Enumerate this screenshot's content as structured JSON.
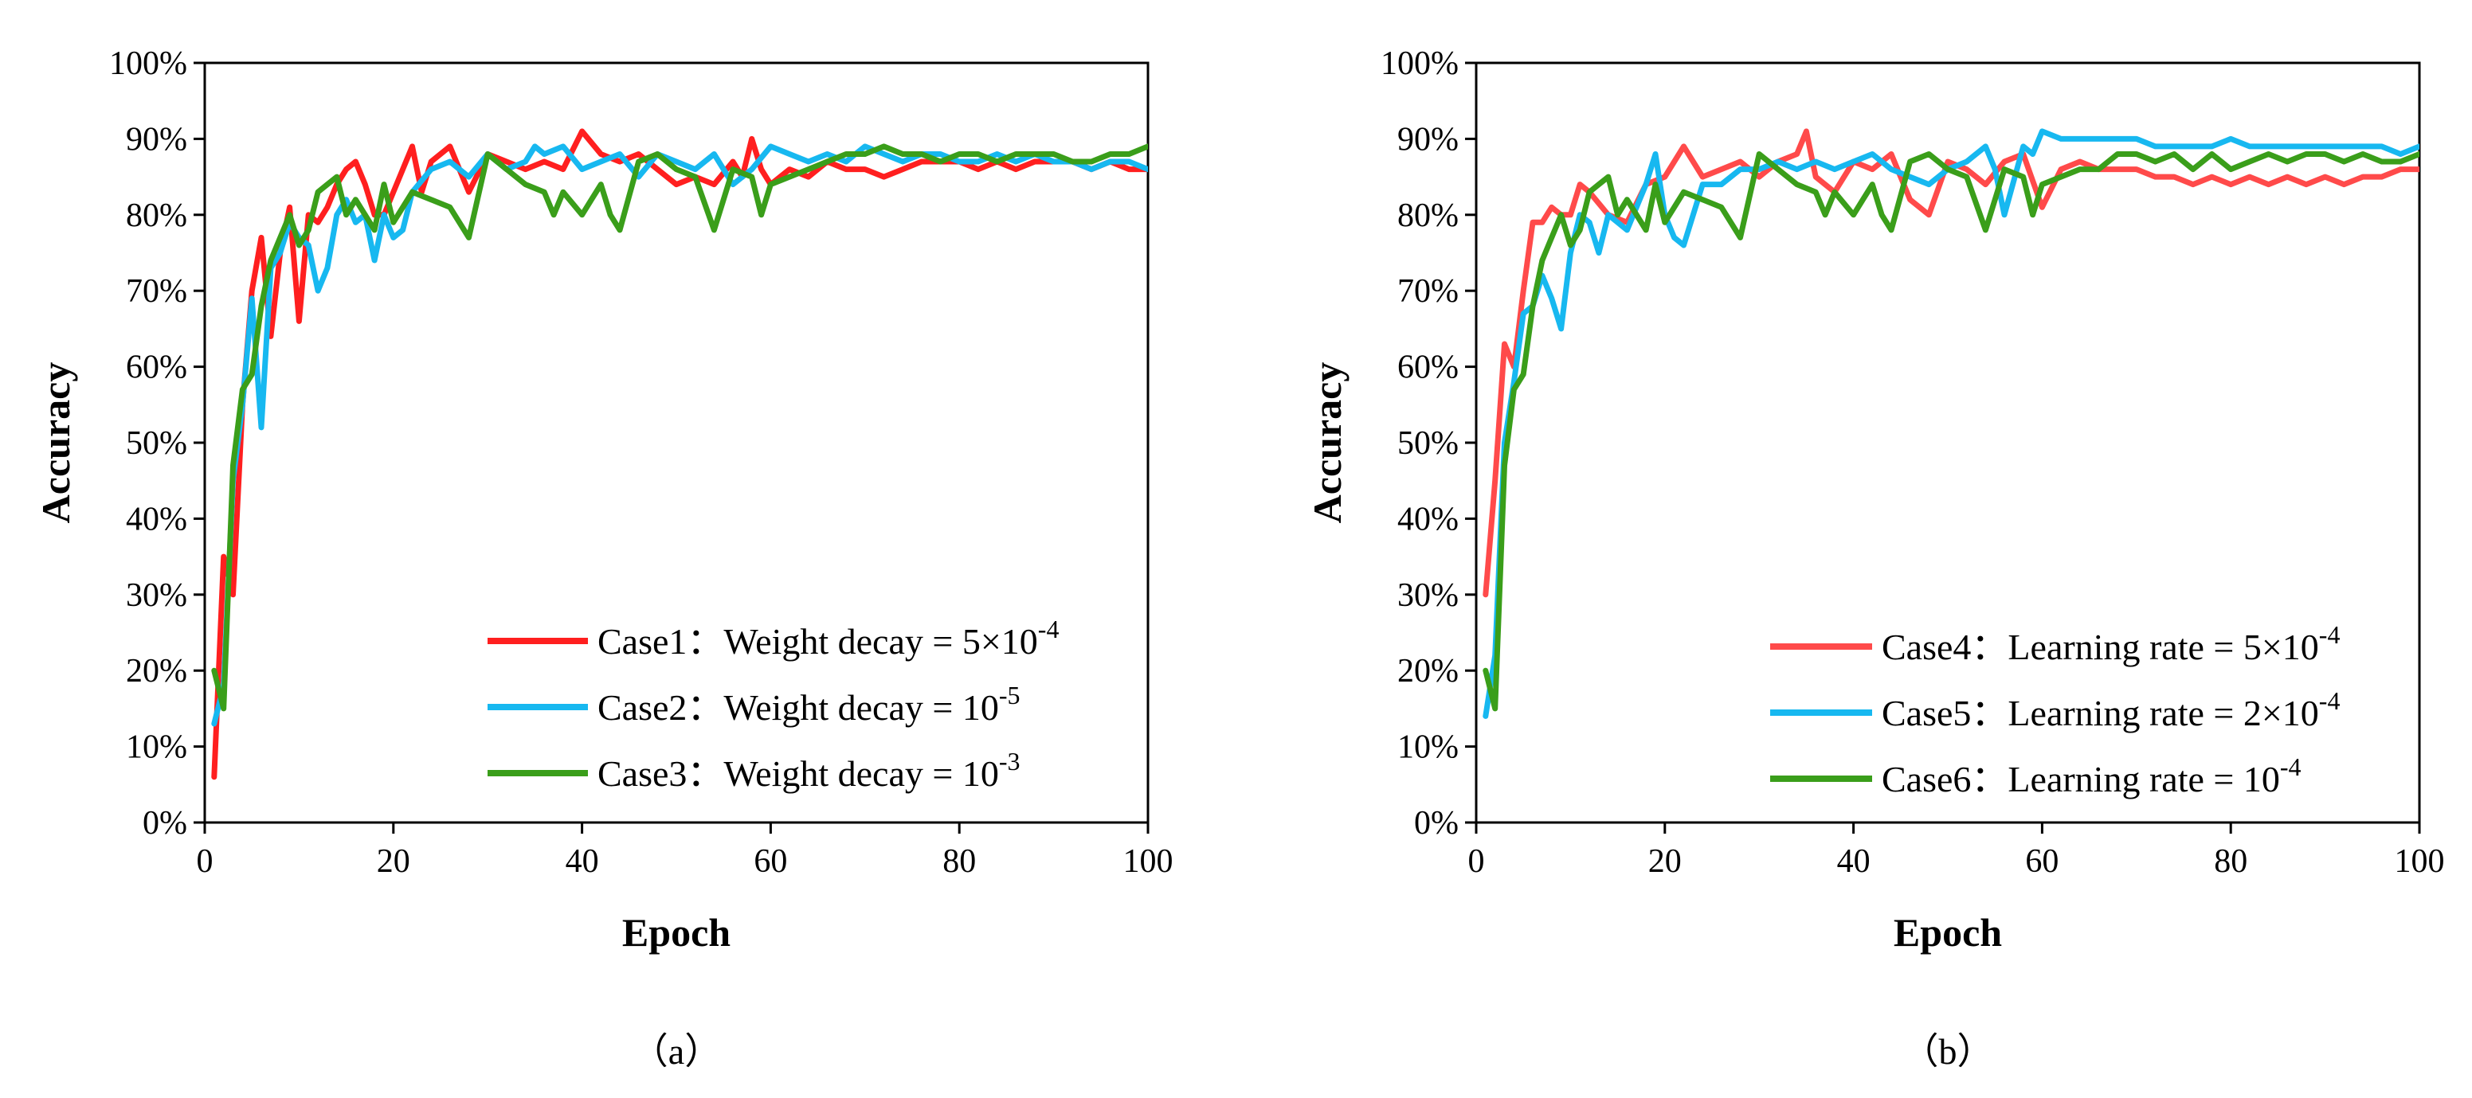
{
  "chart_data": [
    {
      "type": "line",
      "caption": "（a）",
      "xlabel": "Epoch",
      "ylabel": "Accuracy",
      "xlim": [
        0,
        100
      ],
      "ylim": [
        0,
        100
      ],
      "x_ticks": [
        "0",
        "20",
        "40",
        "60",
        "80",
        "100"
      ],
      "y_ticks": [
        "0%",
        "10%",
        "20%",
        "30%",
        "40%",
        "50%",
        "60%",
        "70%",
        "80%",
        "90%",
        "100%"
      ],
      "legend_position": "bottom-right",
      "series": [
        {
          "name": "Case1",
          "label": "Weight decay = 5×10",
          "exponent": "-4",
          "color": "#ff1f1f",
          "x": [
            1,
            2,
            3,
            4,
            5,
            6,
            7,
            8,
            9,
            10,
            11,
            12,
            13,
            14,
            15,
            16,
            17,
            18,
            19,
            20,
            22,
            23,
            24,
            26,
            28,
            30,
            32,
            34,
            36,
            38,
            40,
            42,
            44,
            46,
            48,
            50,
            52,
            54,
            56,
            57,
            58,
            59,
            60,
            62,
            64,
            66,
            68,
            70,
            72,
            74,
            76,
            78,
            80,
            82,
            84,
            86,
            88,
            90,
            92,
            94,
            96,
            98,
            100
          ],
          "values": [
            6,
            35,
            30,
            55,
            70,
            77,
            64,
            75,
            81,
            66,
            80,
            79,
            81,
            84,
            86,
            87,
            84,
            80,
            80,
            83,
            89,
            83,
            87,
            89,
            83,
            88,
            87,
            86,
            87,
            86,
            91,
            88,
            87,
            88,
            86,
            84,
            85,
            84,
            87,
            85,
            90,
            86,
            84,
            86,
            85,
            87,
            86,
            86,
            85,
            86,
            87,
            87,
            87,
            86,
            87,
            86,
            87,
            87,
            87,
            86,
            87,
            86,
            86
          ]
        },
        {
          "name": "Case2",
          "label": "Weight decay = 10",
          "exponent": "-5",
          "color": "#17b8f0",
          "x": [
            1,
            2,
            3,
            4,
            5,
            6,
            7,
            8,
            9,
            10,
            11,
            12,
            13,
            14,
            15,
            16,
            17,
            18,
            19,
            20,
            21,
            22,
            24,
            26,
            28,
            30,
            32,
            34,
            35,
            36,
            38,
            40,
            42,
            44,
            46,
            48,
            50,
            52,
            54,
            56,
            58,
            60,
            62,
            64,
            66,
            68,
            70,
            72,
            74,
            76,
            78,
            80,
            82,
            84,
            86,
            88,
            90,
            92,
            94,
            96,
            98,
            100
          ],
          "values": [
            13,
            18,
            45,
            55,
            69,
            52,
            73,
            75,
            79,
            77,
            76,
            70,
            73,
            80,
            82,
            79,
            80,
            74,
            80,
            77,
            78,
            83,
            86,
            87,
            85,
            88,
            86,
            87,
            89,
            88,
            89,
            86,
            87,
            88,
            85,
            88,
            87,
            86,
            88,
            84,
            86,
            89,
            88,
            87,
            88,
            87,
            89,
            88,
            87,
            88,
            88,
            87,
            87,
            88,
            87,
            88,
            87,
            87,
            86,
            87,
            87,
            86
          ]
        },
        {
          "name": "Case3",
          "label": "Weight decay = 10",
          "exponent": "-3",
          "color": "#3a9e1a",
          "x": [
            1,
            2,
            3,
            4,
            5,
            6,
            7,
            8,
            9,
            10,
            11,
            12,
            13,
            14,
            15,
            16,
            17,
            18,
            19,
            20,
            22,
            24,
            26,
            28,
            30,
            32,
            34,
            36,
            37,
            38,
            40,
            41,
            42,
            43,
            44,
            46,
            48,
            50,
            52,
            54,
            56,
            58,
            59,
            60,
            62,
            64,
            66,
            68,
            70,
            72,
            74,
            76,
            78,
            80,
            82,
            84,
            86,
            88,
            90,
            92,
            94,
            96,
            98,
            100
          ],
          "values": [
            20,
            15,
            47,
            57,
            59,
            68,
            74,
            77,
            80,
            76,
            78,
            83,
            84,
            85,
            80,
            82,
            80,
            78,
            84,
            79,
            83,
            82,
            81,
            77,
            88,
            86,
            84,
            83,
            80,
            83,
            80,
            82,
            84,
            80,
            78,
            87,
            88,
            86,
            85,
            78,
            86,
            85,
            80,
            84,
            85,
            86,
            87,
            88,
            88,
            89,
            88,
            88,
            87,
            88,
            88,
            87,
            88,
            88,
            88,
            87,
            87,
            88,
            88,
            89
          ]
        }
      ]
    },
    {
      "type": "line",
      "caption": "（b）",
      "xlabel": "Epoch",
      "ylabel": "Accuracy",
      "xlim": [
        0,
        100
      ],
      "ylim": [
        0,
        100
      ],
      "x_ticks": [
        "0",
        "20",
        "40",
        "60",
        "80",
        "100"
      ],
      "y_ticks": [
        "0%",
        "10%",
        "20%",
        "30%",
        "40%",
        "50%",
        "60%",
        "70%",
        "80%",
        "90%",
        "100%"
      ],
      "legend_position": "bottom-right",
      "series": [
        {
          "name": "Case4",
          "label": "Learning rate = 5×10",
          "exponent": "-4",
          "color": "#ff4a4a",
          "x": [
            1,
            2,
            3,
            4,
            5,
            6,
            7,
            8,
            9,
            10,
            11,
            12,
            14,
            16,
            18,
            20,
            22,
            24,
            26,
            28,
            30,
            32,
            34,
            35,
            36,
            38,
            40,
            42,
            44,
            46,
            48,
            50,
            52,
            54,
            56,
            58,
            60,
            62,
            64,
            66,
            68,
            70,
            72,
            74,
            76,
            78,
            80,
            82,
            84,
            86,
            88,
            90,
            92,
            94,
            96,
            98,
            100
          ],
          "values": [
            30,
            45,
            63,
            60,
            70,
            79,
            79,
            81,
            80,
            80,
            84,
            83,
            80,
            79,
            84,
            85,
            89,
            85,
            86,
            87,
            85,
            87,
            88,
            91,
            85,
            83,
            87,
            86,
            88,
            82,
            80,
            87,
            86,
            84,
            87,
            88,
            81,
            86,
            87,
            86,
            86,
            86,
            85,
            85,
            84,
            85,
            84,
            85,
            84,
            85,
            84,
            85,
            84,
            85,
            85,
            86,
            86
          ]
        },
        {
          "name": "Case5",
          "label": "Learning rate = 2×10",
          "exponent": "-4",
          "color": "#17b8f0",
          "x": [
            1,
            2,
            3,
            4,
            5,
            6,
            7,
            8,
            9,
            10,
            11,
            12,
            13,
            14,
            16,
            18,
            19,
            20,
            21,
            22,
            24,
            26,
            28,
            30,
            32,
            34,
            36,
            38,
            40,
            42,
            44,
            46,
            48,
            50,
            52,
            54,
            55,
            56,
            58,
            59,
            60,
            62,
            64,
            66,
            68,
            70,
            72,
            74,
            76,
            78,
            80,
            82,
            84,
            86,
            88,
            90,
            92,
            94,
            96,
            98,
            100
          ],
          "values": [
            14,
            22,
            50,
            58,
            67,
            68,
            72,
            69,
            65,
            75,
            80,
            79,
            75,
            80,
            78,
            84,
            88,
            80,
            77,
            76,
            84,
            84,
            86,
            86,
            87,
            86,
            87,
            86,
            87,
            88,
            86,
            85,
            84,
            86,
            87,
            89,
            86,
            80,
            89,
            88,
            91,
            90,
            90,
            90,
            90,
            90,
            89,
            89,
            89,
            89,
            90,
            89,
            89,
            89,
            89,
            89,
            89,
            89,
            89,
            88,
            89
          ]
        },
        {
          "name": "Case6",
          "label": "Learning rate = 10",
          "exponent": "-4",
          "color": "#3a9e1a",
          "x": [
            1,
            2,
            3,
            4,
            5,
            6,
            7,
            8,
            9,
            10,
            11,
            12,
            13,
            14,
            15,
            16,
            17,
            18,
            19,
            20,
            22,
            24,
            26,
            28,
            30,
            32,
            34,
            36,
            37,
            38,
            40,
            41,
            42,
            43,
            44,
            46,
            48,
            50,
            52,
            54,
            56,
            58,
            59,
            60,
            62,
            64,
            66,
            68,
            70,
            72,
            74,
            76,
            78,
            80,
            82,
            84,
            86,
            88,
            90,
            92,
            94,
            96,
            98,
            100
          ],
          "values": [
            20,
            15,
            47,
            57,
            59,
            68,
            74,
            77,
            80,
            76,
            78,
            83,
            84,
            85,
            80,
            82,
            80,
            78,
            84,
            79,
            83,
            82,
            81,
            77,
            88,
            86,
            84,
            83,
            80,
            83,
            80,
            82,
            84,
            80,
            78,
            87,
            88,
            86,
            85,
            78,
            86,
            85,
            80,
            84,
            85,
            86,
            86,
            88,
            88,
            87,
            88,
            86,
            88,
            86,
            87,
            88,
            87,
            88,
            88,
            87,
            88,
            87,
            87,
            88
          ]
        }
      ]
    }
  ]
}
